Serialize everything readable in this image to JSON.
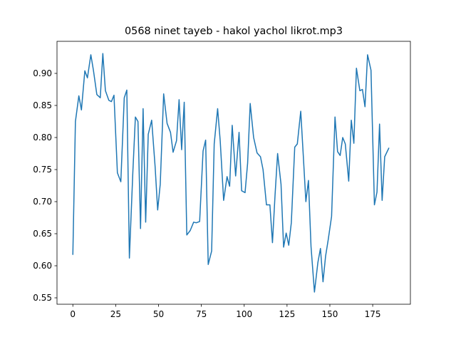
{
  "chart_data": {
    "type": "line",
    "title": "0568 ninet tayeb - hakol yachol likrot.mp3",
    "color": "#1f77b4",
    "x": [
      0,
      1.5,
      3.5,
      5,
      7,
      8.5,
      10.5,
      12,
      14,
      16,
      17.5,
      19,
      21,
      22.5,
      24,
      26,
      28,
      30,
      31.5,
      33,
      35,
      36.5,
      38,
      39.5,
      41,
      42.5,
      44,
      46,
      48,
      49.5,
      51,
      53,
      55,
      57,
      58.5,
      60.5,
      62,
      63.5,
      65,
      66.5,
      68.5,
      70.5,
      72,
      74,
      76,
      77.5,
      79,
      81,
      82.5,
      84.5,
      86,
      88,
      90,
      91.5,
      93,
      95,
      97,
      98.5,
      100.5,
      102,
      103.5,
      105.5,
      107.5,
      109.5,
      111,
      113,
      115,
      116.5,
      118,
      119.5,
      121.5,
      123,
      124.5,
      126,
      127.5,
      129.5,
      131,
      133,
      134.5,
      136,
      137.5,
      139,
      141,
      143,
      144.5,
      146,
      147.5,
      149,
      151,
      153,
      154.5,
      156,
      157.5,
      159,
      161,
      162.5,
      164,
      165.5,
      167.5,
      169,
      170.5,
      172,
      174,
      176,
      177.5,
      179,
      180.5,
      182,
      184.5
    ],
    "values": [
      0.617,
      0.825,
      0.865,
      0.843,
      0.904,
      0.893,
      0.929,
      0.905,
      0.867,
      0.862,
      0.931,
      0.873,
      0.858,
      0.856,
      0.866,
      0.745,
      0.731,
      0.862,
      0.874,
      0.612,
      0.745,
      0.832,
      0.825,
      0.658,
      0.845,
      0.668,
      0.805,
      0.827,
      0.755,
      0.687,
      0.727,
      0.868,
      0.822,
      0.808,
      0.777,
      0.795,
      0.859,
      0.781,
      0.855,
      0.648,
      0.655,
      0.668,
      0.667,
      0.669,
      0.779,
      0.796,
      0.602,
      0.623,
      0.79,
      0.845,
      0.795,
      0.702,
      0.739,
      0.724,
      0.819,
      0.74,
      0.808,
      0.717,
      0.714,
      0.76,
      0.853,
      0.8,
      0.776,
      0.77,
      0.75,
      0.695,
      0.695,
      0.636,
      0.71,
      0.775,
      0.727,
      0.629,
      0.651,
      0.632,
      0.667,
      0.785,
      0.79,
      0.841,
      0.771,
      0.7,
      0.733,
      0.63,
      0.559,
      0.605,
      0.627,
      0.575,
      0.615,
      0.64,
      0.677,
      0.832,
      0.778,
      0.772,
      0.8,
      0.79,
      0.732,
      0.827,
      0.791,
      0.908,
      0.873,
      0.875,
      0.848,
      0.929,
      0.905,
      0.695,
      0.715,
      0.821,
      0.702,
      0.77,
      0.784
    ],
    "xlim": [
      -9.25,
      197.0
    ],
    "ylim": [
      0.54,
      0.95
    ],
    "xticks": [
      0,
      25,
      50,
      75,
      100,
      125,
      150,
      175
    ],
    "yticks": [
      0.55,
      {
        "value": 0.6,
        "label": "0.60"
      },
      0.65,
      {
        "value": 0.7,
        "label": "0.70"
      },
      0.75,
      {
        "value": 0.8,
        "label": "0.80"
      },
      0.85,
      {
        "value": 0.9,
        "label": "0.90"
      }
    ]
  }
}
